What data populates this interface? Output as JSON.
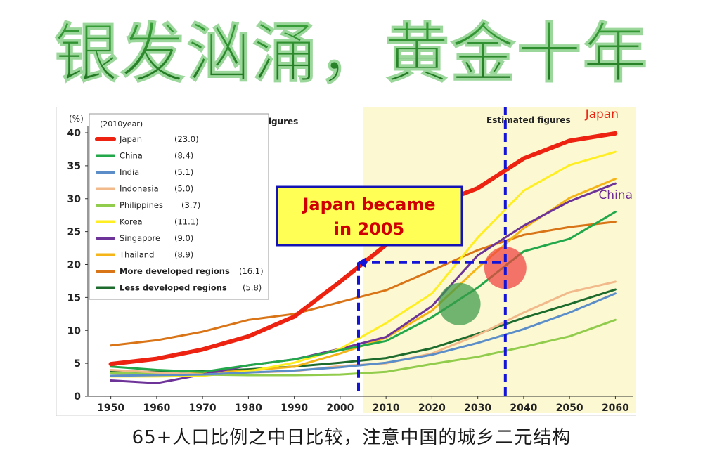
{
  "headline": "银发汹涌，黄金十年",
  "caption": "65+人口比例之中日比较，注意中国的城乡二元结构",
  "colors": {
    "headline_green": "#2a8a2a",
    "estimate_band": "#fbf8d2",
    "callout_text": "#d10000",
    "callout_border": "#1414b4",
    "callout_fill": "#ffff55",
    "marker_line": "#1414d8"
  },
  "chart_data": {
    "type": "line",
    "ylabel": "(%)",
    "ylim": [
      0,
      40
    ],
    "yticks": [
      0,
      5,
      10,
      15,
      20,
      25,
      30,
      35,
      40
    ],
    "xticks": [
      1950,
      1960,
      1970,
      1980,
      1990,
      2000,
      2010,
      2020,
      2030,
      2040,
      2050,
      2060
    ],
    "xlim": [
      1945,
      2063
    ],
    "grid": false,
    "region_labels": {
      "actual": "Actual figures",
      "estimated": "Estimated figures"
    },
    "estimate_band_start": 2005,
    "legend_title": "(2010year)",
    "legend_placement": "top-left",
    "series": [
      {
        "name": "Japan",
        "value_2010": "(23.0)",
        "color": "#ee2211",
        "width": 6,
        "x": [
          1950,
          1960,
          1970,
          1980,
          1990,
          2000,
          2010,
          2020,
          2030,
          2040,
          2050,
          2060
        ],
        "y": [
          4.9,
          5.7,
          7.1,
          9.1,
          12.1,
          17.4,
          23.0,
          28.9,
          31.6,
          36.1,
          38.8,
          39.9
        ]
      },
      {
        "name": "China",
        "value_2010": "(8.4)",
        "color": "#22a84a",
        "width": 3,
        "x": [
          1950,
          1960,
          1970,
          1980,
          1990,
          2000,
          2010,
          2020,
          2030,
          2040,
          2050,
          2060
        ],
        "y": [
          4.5,
          4.0,
          3.7,
          4.7,
          5.6,
          7.0,
          8.4,
          12.0,
          16.5,
          22.0,
          23.9,
          28.0
        ]
      },
      {
        "name": "India",
        "value_2010": "(5.1)",
        "color": "#5b8ec9",
        "width": 3,
        "x": [
          1950,
          1960,
          1970,
          1980,
          1990,
          2000,
          2010,
          2020,
          2030,
          2040,
          2050,
          2060
        ],
        "y": [
          3.1,
          3.2,
          3.3,
          3.6,
          3.9,
          4.4,
          5.1,
          6.3,
          8.1,
          10.2,
          12.7,
          15.6
        ]
      },
      {
        "name": "Indonesia",
        "value_2010": "(5.0)",
        "color": "#f2b98a",
        "width": 3,
        "x": [
          1950,
          1960,
          1970,
          1980,
          1990,
          2000,
          2010,
          2020,
          2030,
          2040,
          2050,
          2060
        ],
        "y": [
          4.0,
          3.6,
          3.3,
          3.6,
          3.8,
          4.6,
          5.0,
          6.5,
          9.3,
          12.7,
          15.8,
          17.4
        ]
      },
      {
        "name": "Philippines",
        "value_2010": "(3.7)",
        "color": "#92cc4c",
        "width": 3,
        "x": [
          1950,
          1960,
          1970,
          1980,
          1990,
          2000,
          2010,
          2020,
          2030,
          2040,
          2050,
          2060
        ],
        "y": [
          3.5,
          3.4,
          3.3,
          3.2,
          3.2,
          3.3,
          3.7,
          4.9,
          6.0,
          7.5,
          9.1,
          11.6
        ]
      },
      {
        "name": "Korea",
        "value_2010": "(11.1)",
        "color": "#ffee22",
        "width": 3,
        "x": [
          1950,
          1960,
          1970,
          1980,
          1990,
          2000,
          2010,
          2020,
          2030,
          2040,
          2050,
          2060
        ],
        "y": [
          3.0,
          3.0,
          3.1,
          3.8,
          5.1,
          7.2,
          11.1,
          15.6,
          24.1,
          31.2,
          35.1,
          37.1
        ]
      },
      {
        "name": "Singapore",
        "value_2010": "(9.0)",
        "color": "#6e3399",
        "width": 3,
        "x": [
          1950,
          1960,
          1970,
          1980,
          1990,
          2000,
          2010,
          2020,
          2030,
          2040,
          2050,
          2060
        ],
        "y": [
          2.4,
          2.0,
          3.3,
          4.7,
          5.6,
          7.2,
          9.0,
          13.7,
          21.4,
          25.9,
          29.6,
          32.3
        ]
      },
      {
        "name": "Thailand",
        "value_2010": "(8.9)",
        "color": "#f5b417",
        "width": 3,
        "x": [
          1950,
          1960,
          1970,
          1980,
          1990,
          2000,
          2010,
          2020,
          2030,
          2040,
          2050,
          2060
        ],
        "y": [
          3.1,
          3.3,
          3.5,
          3.9,
          4.5,
          6.5,
          8.9,
          13.0,
          19.5,
          25.5,
          30.1,
          33.0
        ]
      },
      {
        "name": "More developed regions",
        "value_2010": "(16.1)",
        "color": "#d97417",
        "width": 3,
        "x": [
          1950,
          1960,
          1970,
          1980,
          1990,
          2000,
          2010,
          2020,
          2030,
          2040,
          2050,
          2060
        ],
        "y": [
          7.7,
          8.5,
          9.8,
          11.6,
          12.5,
          14.3,
          16.1,
          19.1,
          22.2,
          24.5,
          25.7,
          26.5
        ]
      },
      {
        "name": "Less developed regions",
        "value_2010": "(5.8)",
        "color": "#1d6b2d",
        "width": 3,
        "x": [
          1950,
          1960,
          1970,
          1980,
          1990,
          2000,
          2010,
          2020,
          2030,
          2040,
          2050,
          2060
        ],
        "y": [
          3.8,
          3.7,
          3.8,
          4.1,
          4.5,
          5.1,
          5.8,
          7.3,
          9.5,
          11.9,
          14.0,
          16.2
        ]
      }
    ],
    "end_labels": [
      {
        "text": "Japan",
        "color": "#ee2211"
      },
      {
        "text": "China",
        "color": "#6e2a95"
      }
    ],
    "callout": {
      "line1": "Japan became",
      "line2": "in 2005"
    },
    "markers": {
      "vertical_x": [
        2004,
        2036
      ],
      "horizontal_y": 20.3
    },
    "circles": [
      {
        "x": 2036,
        "y": 19.5,
        "color": "#f04040"
      },
      {
        "x": 2026,
        "y": 14.0,
        "color": "#3a9a4a"
      }
    ]
  }
}
